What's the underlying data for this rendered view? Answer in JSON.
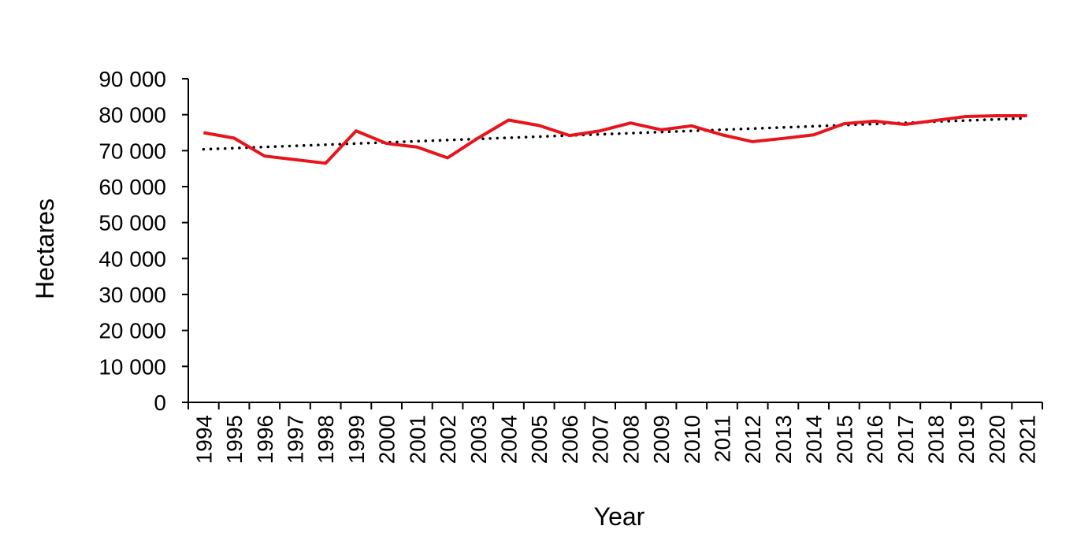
{
  "chart_data": {
    "type": "line",
    "x_label": "Year",
    "y_label": "Hectares",
    "categories": [
      "1994",
      "1995",
      "1996",
      "1997",
      "1998",
      "1999",
      "2000",
      "2001",
      "2002",
      "2003",
      "2004",
      "2005",
      "2006",
      "2007",
      "2008",
      "2009",
      "2010",
      "2011",
      "2012",
      "2013",
      "2014",
      "2015",
      "2016",
      "2017",
      "2018",
      "2019",
      "2020",
      "2021"
    ],
    "values": [
      75000,
      73500,
      68500,
      67500,
      66500,
      75500,
      72000,
      71000,
      68000,
      73500,
      78500,
      77000,
      74200,
      75500,
      77700,
      75800,
      76900,
      74400,
      72500,
      73400,
      74400,
      77500,
      78200,
      77300,
      78400,
      79500,
      79700,
      79700
    ],
    "color": "#e8141c",
    "trendline": "linear",
    "ylim": [
      0,
      90000
    ],
    "yticks": [
      0,
      {
        "value": 10000,
        "label": "10 000"
      },
      {
        "value": 20000,
        "label": "20 000"
      },
      {
        "value": 30000,
        "label": "30 000"
      },
      {
        "value": 40000,
        "label": "40 000"
      },
      {
        "value": 50000,
        "label": "50 000"
      },
      {
        "value": 60000,
        "label": "60 000"
      },
      {
        "value": 70000,
        "label": "70 000"
      },
      {
        "value": 80000,
        "label": "80 000"
      },
      {
        "value": 90000,
        "label": "90 000"
      }
    ]
  }
}
